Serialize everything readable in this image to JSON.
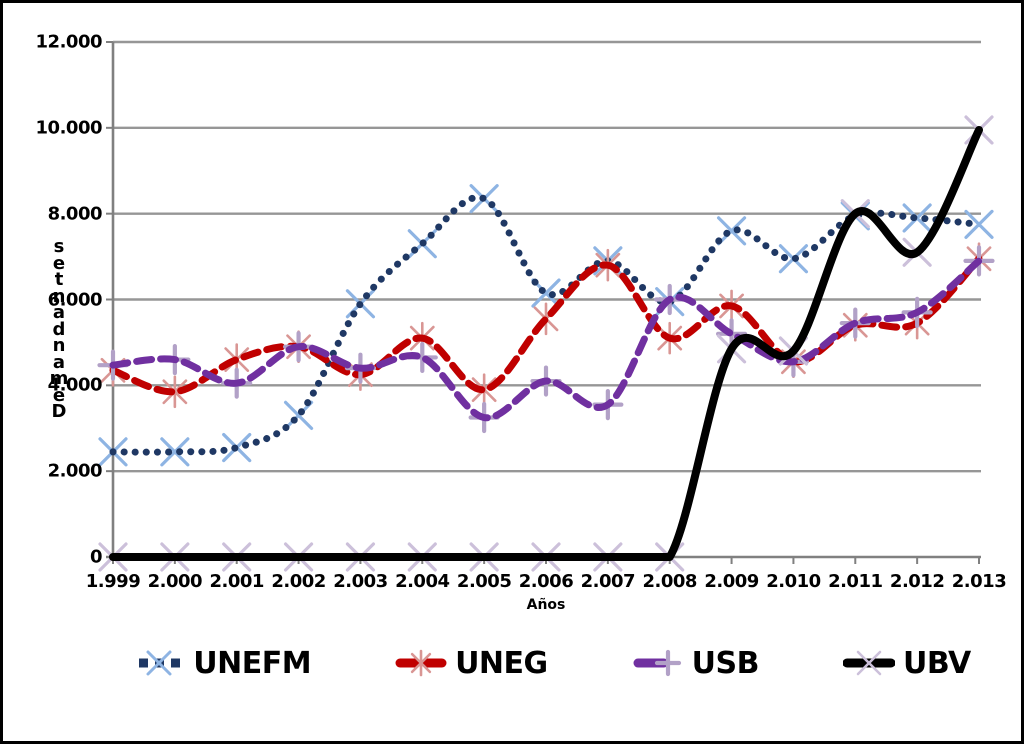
{
  "page": {
    "background": "#ffffff",
    "frame_border_color": "#000000"
  },
  "chart_data": {
    "type": "line",
    "x": [
      "1.999",
      "2.000",
      "2.001",
      "2.002",
      "2.003",
      "2.004",
      "2.005",
      "2.006",
      "2.007",
      "2.008",
      "2.009",
      "2.010",
      "2.011",
      "2.012",
      "2.013"
    ],
    "xlabel": "Años",
    "ylabel": "Demandantes",
    "ylabel_render": "vertical-stacked-bottom-up",
    "y_ticks": [
      "12.000",
      "10.000",
      "8.000",
      "6.000",
      "4.000",
      "2.000",
      "0"
    ],
    "y_tick_values": [
      12000,
      10000,
      8000,
      6000,
      4000,
      2000,
      0
    ],
    "ylim": [
      0,
      12000
    ],
    "grid": true,
    "legend_position": "bottom",
    "axis_color": "#808080",
    "gridline_color": "#969696",
    "series": [
      {
        "name": "UNEFM",
        "line_color": "#1F3864",
        "marker_color": "#8EB4E3",
        "line_style": "dotted",
        "marker": "x",
        "values": [
          2450,
          2450,
          2550,
          3300,
          5900,
          7300,
          8350,
          6150,
          6900,
          5950,
          7600,
          6950,
          7950,
          7900,
          7750
        ]
      },
      {
        "name": "UNEG",
        "line_color": "#C00000",
        "marker_color": "#D99694",
        "line_style": "dashed",
        "marker": "asterisk",
        "values": [
          4350,
          3850,
          4600,
          4900,
          4250,
          5100,
          3900,
          5550,
          6800,
          5100,
          5850,
          4550,
          5400,
          5450,
          6950
        ]
      },
      {
        "name": "USB",
        "line_color": "#7030A0",
        "marker_color": "#B2A1C7",
        "line_style": "dashed",
        "marker": "plus",
        "values": [
          4470,
          4600,
          4050,
          4900,
          4400,
          4650,
          3250,
          4100,
          3550,
          6000,
          5200,
          4550,
          5450,
          5700,
          6900
        ]
      },
      {
        "name": "UBV",
        "line_color": "#000000",
        "marker_color": "#CCC0DA",
        "line_style": "solid",
        "marker": "x",
        "values": [
          0,
          0,
          0,
          0,
          0,
          0,
          0,
          0,
          0,
          0,
          4850,
          4800,
          8000,
          7100,
          9950
        ]
      }
    ]
  }
}
